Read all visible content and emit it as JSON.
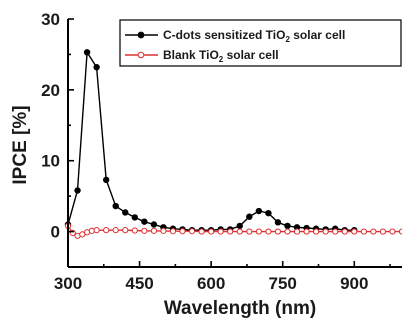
{
  "chart_data": {
    "type": "line",
    "xlabel": "Wavelength (nm)",
    "ylabel": "IPCE [%]",
    "xlim": [
      300,
      1000
    ],
    "ylim": [
      -5,
      30
    ],
    "xticks": [
      300,
      450,
      600,
      750,
      900
    ],
    "yticks": [
      0,
      10,
      20,
      30
    ],
    "legend_position": "top-right",
    "series": [
      {
        "name_main": "C-dots sensitized TiO",
        "name_sub": "2",
        "name_tail": " solar cell",
        "color": "#000000",
        "marker": "filled-circle",
        "points": [
          [
            300,
            1.0
          ],
          [
            320,
            5.8
          ],
          [
            340,
            25.3
          ],
          [
            360,
            23.2
          ],
          [
            380,
            7.3
          ],
          [
            400,
            3.6
          ],
          [
            420,
            2.7
          ],
          [
            440,
            2.0
          ],
          [
            460,
            1.4
          ],
          [
            480,
            1.0
          ],
          [
            500,
            0.6
          ],
          [
            520,
            0.4
          ],
          [
            540,
            0.3
          ],
          [
            560,
            0.2
          ],
          [
            580,
            0.2
          ],
          [
            600,
            0.2
          ],
          [
            620,
            0.3
          ],
          [
            640,
            0.3
          ],
          [
            660,
            0.8
          ],
          [
            680,
            2.1
          ],
          [
            700,
            2.9
          ],
          [
            720,
            2.6
          ],
          [
            740,
            1.3
          ],
          [
            760,
            0.8
          ],
          [
            780,
            0.6
          ],
          [
            800,
            0.5
          ],
          [
            820,
            0.4
          ],
          [
            840,
            0.3
          ],
          [
            860,
            0.4
          ],
          [
            880,
            0.2
          ],
          [
            900,
            0.2
          ]
        ]
      },
      {
        "name_main": "Blank TiO",
        "name_sub": "2",
        "name_tail": " solar cell",
        "color": "#e03030",
        "marker": "open-circle",
        "points": [
          [
            300,
            0.8
          ],
          [
            310,
            -0.2
          ],
          [
            320,
            -0.6
          ],
          [
            330,
            -0.4
          ],
          [
            340,
            -0.1
          ],
          [
            350,
            0.1
          ],
          [
            360,
            0.2
          ],
          [
            380,
            0.2
          ],
          [
            400,
            0.2
          ],
          [
            420,
            0.2
          ],
          [
            440,
            0.15
          ],
          [
            460,
            0.1
          ],
          [
            480,
            0.1
          ],
          [
            500,
            0.1
          ],
          [
            520,
            0.05
          ],
          [
            540,
            0.05
          ],
          [
            560,
            0.05
          ],
          [
            580,
            0.0
          ],
          [
            600,
            0.0
          ],
          [
            620,
            0.0
          ],
          [
            640,
            0.0
          ],
          [
            660,
            0.0
          ],
          [
            680,
            0.0
          ],
          [
            700,
            0.0
          ],
          [
            720,
            0.0
          ],
          [
            740,
            0.0
          ],
          [
            760,
            0.0
          ],
          [
            780,
            0.0
          ],
          [
            800,
            0.0
          ],
          [
            820,
            0.0
          ],
          [
            840,
            0.0
          ],
          [
            860,
            0.0
          ],
          [
            880,
            0.0
          ],
          [
            900,
            0.0
          ],
          [
            920,
            0.0
          ],
          [
            940,
            0.0
          ],
          [
            960,
            0.0
          ],
          [
            980,
            0.0
          ],
          [
            1000,
            0.0
          ]
        ]
      }
    ]
  }
}
